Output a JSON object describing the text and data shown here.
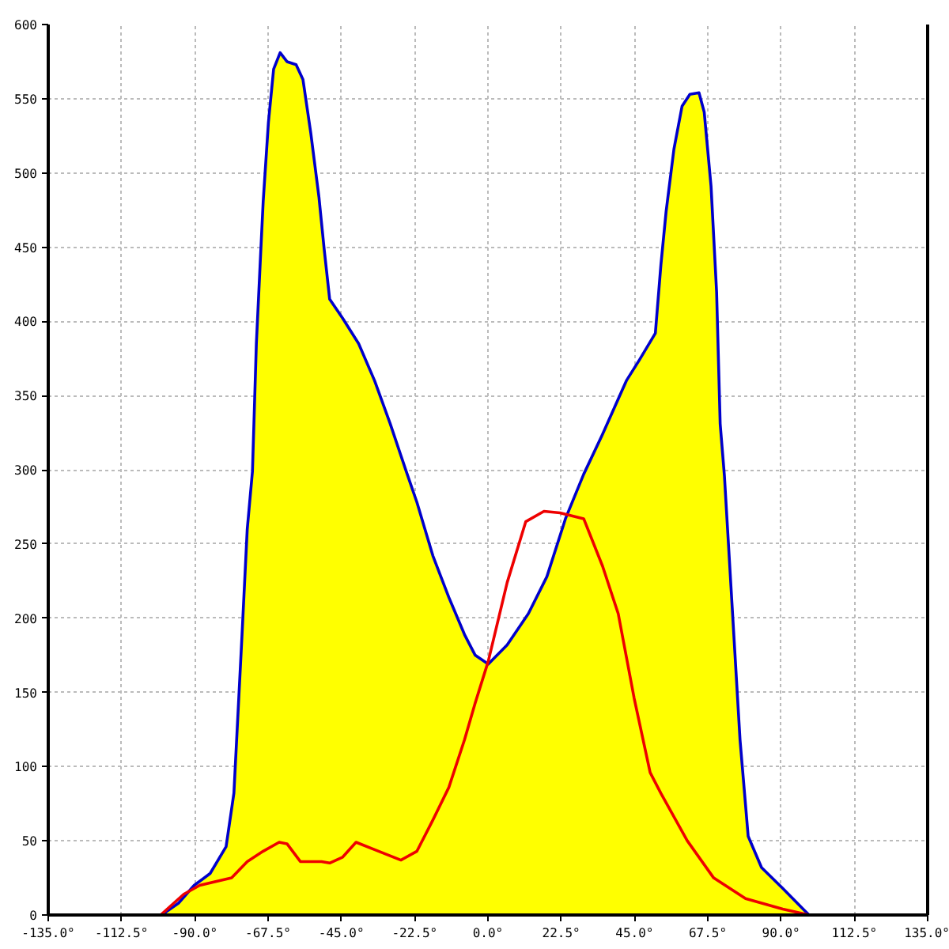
{
  "chart_data": {
    "type": "area",
    "xlim": [
      -135,
      135
    ],
    "ylim": [
      0,
      600
    ],
    "xticks": [
      {
        "value": -135,
        "label": "-135.0°"
      },
      {
        "value": -112.5,
        "label": "-112.5°"
      },
      {
        "value": -90,
        "label": "-90.0°"
      },
      {
        "value": -67.5,
        "label": "-67.5°"
      },
      {
        "value": -45,
        "label": "-45.0°"
      },
      {
        "value": -22.5,
        "label": "-22.5°"
      },
      {
        "value": 0,
        "label": "0.0°"
      },
      {
        "value": 22.5,
        "label": "22.5°"
      },
      {
        "value": 45,
        "label": "45.0°"
      },
      {
        "value": 67.5,
        "label": "67.5°"
      },
      {
        "value": 90,
        "label": "90.0°"
      },
      {
        "value": 112.5,
        "label": "112.5°"
      },
      {
        "value": 135,
        "label": "135.0°"
      }
    ],
    "yticks": [
      0,
      50,
      100,
      150,
      200,
      250,
      300,
      350,
      400,
      450,
      500,
      550,
      600
    ],
    "grid": true,
    "series": [
      {
        "color": "#ffff00",
        "x": [
          -135,
          -100.2,
          -95,
          -90.2,
          -85.3,
          -80.4,
          -78,
          -75.5,
          -73.9,
          -72.3,
          -71.1,
          -69.8,
          -69,
          -67.4,
          -65.8,
          -63.8,
          -61.7,
          -58.9,
          -56.8,
          -54.4,
          -51.9,
          -50.3,
          -48.6,
          -44.6,
          -39.7,
          -34.8,
          -30,
          -25.1,
          -21.8,
          -16.9,
          -12,
          -7.2,
          -3.9,
          0.1,
          5.9,
          12.4,
          18.1,
          23.8,
          29.4,
          35.2,
          42.5,
          46.5,
          51.4,
          53.1,
          54.7,
          57.1,
          59.6,
          62,
          64.8,
          66.4,
          68.5,
          70.2,
          71.3,
          72.6,
          75,
          77.4,
          79.9,
          84,
          90.5,
          95.4,
          98.6,
          135
        ],
        "values": [
          0,
          0,
          8,
          20,
          28,
          46,
          82,
          189,
          260,
          299,
          385,
          445,
          481,
          534,
          570,
          581,
          575,
          573,
          563,
          527,
          484,
          449,
          415,
          402,
          385,
          360,
          331,
          299,
          278,
          242,
          214,
          189,
          175,
          169,
          182,
          203,
          228,
          267,
          297,
          324,
          360,
          374,
          392,
          438,
          474,
          516,
          545,
          553,
          554,
          541,
          491,
          420,
          331,
          296,
          207,
          118,
          53,
          32,
          18,
          7,
          0,
          0
        ]
      },
      {
        "type": "line",
        "color": "#0000cc",
        "x": [
          -100.2,
          -95,
          -90.2,
          -85.3,
          -80.4,
          -78,
          -75.5,
          -73.9,
          -72.3,
          -71.1,
          -69.8,
          -69,
          -67.4,
          -65.8,
          -63.8,
          -61.7,
          -58.9,
          -56.8,
          -54.4,
          -51.9,
          -50.3,
          -48.6,
          -44.6,
          -39.7,
          -34.8,
          -30,
          -25.1,
          -21.8,
          -16.9,
          -12,
          -7.2,
          -3.9,
          0.1,
          5.9,
          12.4,
          18.1,
          23.8,
          29.4,
          35.2,
          42.5,
          46.5,
          51.4,
          53.1,
          54.7,
          57.1,
          59.6,
          62,
          64.8,
          66.4,
          68.5,
          70.2,
          71.3,
          72.6,
          75,
          77.4,
          79.9,
          84,
          90.5,
          95.4,
          98.6
        ],
        "values": [
          0,
          8,
          20,
          28,
          46,
          82,
          189,
          260,
          299,
          385,
          445,
          481,
          534,
          570,
          581,
          575,
          573,
          563,
          527,
          484,
          449,
          415,
          402,
          385,
          360,
          331,
          299,
          278,
          242,
          214,
          189,
          175,
          169,
          182,
          203,
          228,
          267,
          297,
          324,
          360,
          374,
          392,
          438,
          474,
          516,
          545,
          553,
          554,
          541,
          491,
          420,
          331,
          296,
          207,
          118,
          53,
          32,
          18,
          7,
          0
        ]
      },
      {
        "type": "line",
        "color": "#ee0000",
        "x": [
          -135,
          -100.5,
          -93.4,
          -88.5,
          -78.7,
          -73.9,
          -69,
          -64.1,
          -61.7,
          -57.6,
          -51.1,
          -48.6,
          -44.6,
          -40.5,
          -34.8,
          -26.7,
          -21.8,
          -16.9,
          -12,
          -7.2,
          -3.9,
          0.1,
          5.9,
          11.6,
          17.2,
          22.1,
          29.4,
          35.2,
          40,
          44.9,
          49.8,
          53.1,
          61.2,
          69.3,
          79.1,
          90.5,
          98.6,
          135
        ],
        "values": [
          0,
          0,
          14,
          20,
          25,
          36,
          43,
          49,
          48,
          36,
          36,
          35,
          39,
          49,
          44,
          37,
          43,
          64,
          86,
          118,
          143,
          171,
          224,
          265,
          272,
          271,
          267,
          235,
          203,
          146,
          96,
          82,
          50,
          25,
          11,
          4,
          0,
          0
        ]
      }
    ]
  }
}
